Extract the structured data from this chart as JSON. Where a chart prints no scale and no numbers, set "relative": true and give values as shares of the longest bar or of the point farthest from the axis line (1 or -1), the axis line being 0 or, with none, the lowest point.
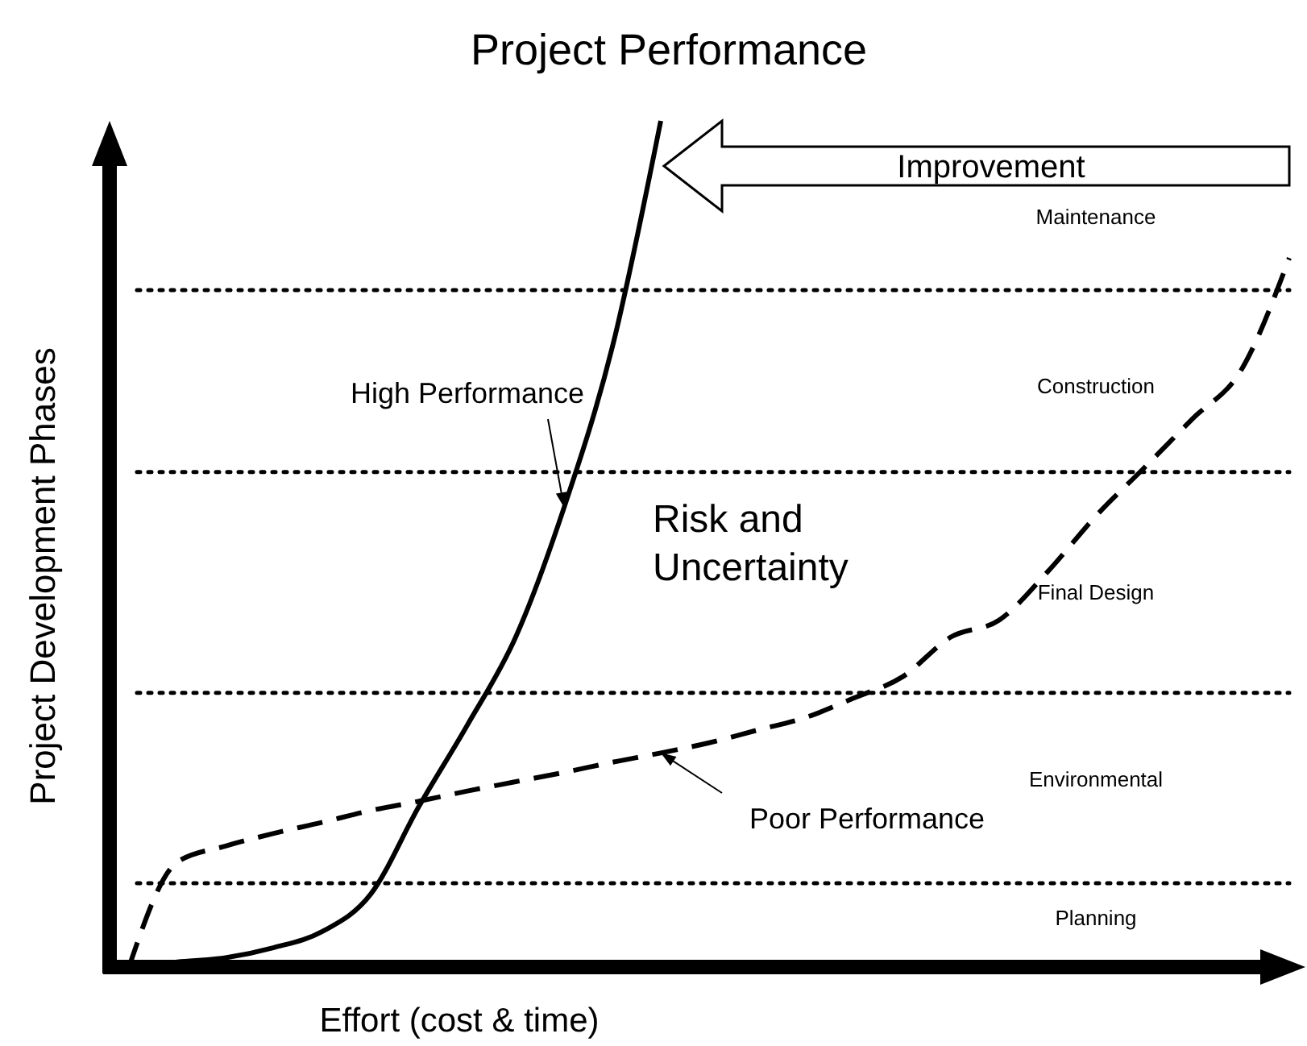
{
  "chart_data": {
    "type": "line",
    "title": "Project Performance",
    "xlabel": "Effort (cost & time)",
    "ylabel": "Project Development Phases",
    "relative": true,
    "categories": [
      null,
      null,
      null,
      null,
      null,
      null,
      null,
      null,
      null,
      null,
      null,
      null,
      null,
      null,
      null,
      null,
      null,
      null,
      null,
      null,
      null,
      null,
      null,
      null,
      null
    ],
    "series": [
      {
        "name": "High Performance",
        "color": "#000000",
        "line_style": "solid",
        "values": [
          0,
          0.006,
          0.011,
          0.023,
          0.042,
          0.086,
          0.19,
          0.286,
          0.39,
          0.543,
          0.733,
          1,
          null,
          null,
          null,
          null,
          null,
          null,
          null,
          null,
          null,
          null,
          null,
          null,
          null
        ]
      },
      {
        "name": "Poor Performance",
        "color": "#000000",
        "line_style": "dashed",
        "values": [
          0,
          0.124,
          0.143,
          0.158,
          0.171,
          0.185,
          0.196,
          0.208,
          0.219,
          0.23,
          0.242,
          0.253,
          0.265,
          0.28,
          0.295,
          0.318,
          0.343,
          0.39,
          0.41,
          0.467,
          0.533,
          0.59,
          0.648,
          0.705,
          0.838
        ]
      }
    ],
    "ref_lines": [
      {
        "axis": "y",
        "value": 0.099,
        "line_style": "dotted"
      },
      {
        "axis": "y",
        "value": 0.324,
        "line_style": "dotted"
      },
      {
        "axis": "y",
        "value": 0.585,
        "line_style": "dotted"
      },
      {
        "axis": "y",
        "value": 0.8,
        "line_style": "dotted"
      }
    ],
    "annotations": [
      "Risk and Uncertainty",
      "Improvement",
      "Planning",
      "Environmental",
      "Final Design",
      "Construction",
      "Maintenance"
    ]
  }
}
